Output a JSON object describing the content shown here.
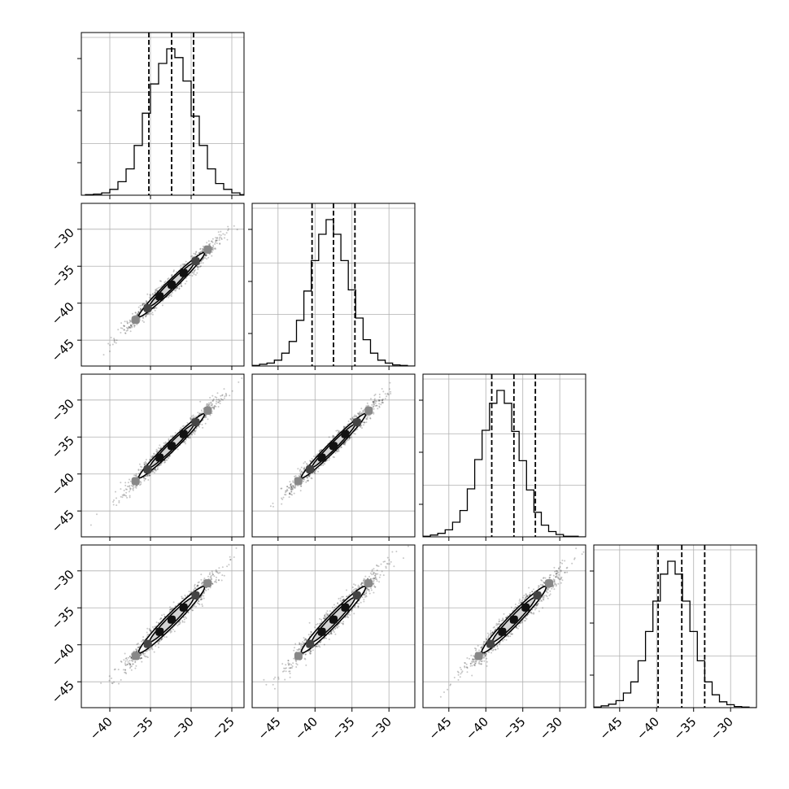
{
  "chart_data": {
    "type": "corner",
    "dimensions": 4,
    "ranges": [
      [
        -43.5,
        -23.5
      ],
      [
        -48.5,
        -26.5
      ],
      [
        -48.5,
        -26.5
      ],
      [
        -48.5,
        -26.5
      ]
    ],
    "tick_values": [
      [
        -40,
        -35,
        -30,
        -25
      ],
      [
        -45,
        -40,
        -35,
        -30
      ],
      [
        -45,
        -40,
        -35,
        -30
      ],
      [
        -45,
        -40,
        -35,
        -30
      ]
    ],
    "tick_labels": [
      [
        "−40",
        "−35",
        "−30",
        "−25"
      ],
      [
        "−45",
        "−40",
        "−35",
        "−30"
      ],
      [
        "−45",
        "−40",
        "−35",
        "−30"
      ],
      [
        "−45",
        "−40",
        "−35",
        "−30"
      ]
    ],
    "row_tick_values": [
      [
        -30,
        -35,
        -40,
        -45
      ],
      [
        -30,
        -35,
        -40,
        -45
      ],
      [
        -30,
        -35,
        -40,
        -45
      ]
    ],
    "row_tick_labels": [
      [
        "−30",
        "−35",
        "−40",
        "−45"
      ],
      [
        "−30",
        "−35",
        "−40",
        "−45"
      ],
      [
        "−30",
        "−35",
        "−40",
        "−45"
      ]
    ],
    "histograms": [
      {
        "bin_edges": [
          -43,
          -42,
          -41,
          -40,
          -39,
          -38,
          -37,
          -36,
          -35,
          -34,
          -33,
          -32,
          -31,
          -30,
          -29,
          -28,
          -27,
          -26,
          -25,
          -24,
          -23.5
        ],
        "counts": [
          1,
          2,
          4,
          10,
          23,
          45,
          85,
          140,
          190,
          225,
          250,
          235,
          195,
          135,
          85,
          45,
          20,
          10,
          4,
          1
        ],
        "quantiles": [
          -35.2,
          -32.4,
          -29.7
        ]
      },
      {
        "bin_edges": [
          -48.5,
          -47.5,
          -46.5,
          -45.5,
          -44.5,
          -43.5,
          -42.5,
          -41.5,
          -40.5,
          -39.5,
          -38.5,
          -37.5,
          -36.5,
          -35.5,
          -34.5,
          -33.5,
          -32.5,
          -31.5,
          -30.5,
          -29.5,
          -28.5,
          -27.5,
          -26.5
        ],
        "counts": [
          1,
          3,
          5,
          10,
          22,
          42,
          78,
          128,
          180,
          225,
          250,
          225,
          180,
          130,
          82,
          45,
          22,
          10,
          5,
          2,
          1,
          0
        ],
        "quantiles": [
          -40.4,
          -37.5,
          -34.6
        ]
      },
      {
        "bin_edges": [
          -48.5,
          -47.5,
          -46.5,
          -45.5,
          -44.5,
          -43.5,
          -42.5,
          -41.5,
          -40.5,
          -39.5,
          -38.5,
          -37.5,
          -36.5,
          -35.5,
          -34.5,
          -33.5,
          -32.5,
          -31.5,
          -30.5,
          -29.5,
          -28.5,
          -27.5,
          -26.5
        ],
        "counts": [
          1,
          3,
          6,
          12,
          25,
          45,
          82,
          132,
          182,
          228,
          250,
          228,
          180,
          130,
          80,
          42,
          20,
          9,
          4,
          1,
          1,
          0
        ],
        "quantiles": [
          -39.2,
          -36.2,
          -33.3
        ]
      },
      {
        "bin_edges": [
          -48.5,
          -47.5,
          -46.5,
          -45.5,
          -44.5,
          -43.5,
          -42.5,
          -41.5,
          -40.5,
          -39.5,
          -38.5,
          -37.5,
          -36.5,
          -35.5,
          -34.5,
          -33.5,
          -32.5,
          -31.5,
          -30.5,
          -29.5,
          -28.5,
          -27.5,
          -26.5
        ],
        "counts": [
          1,
          3,
          6,
          12,
          25,
          44,
          80,
          130,
          182,
          228,
          250,
          228,
          182,
          130,
          80,
          44,
          22,
          10,
          5,
          2,
          1,
          0
        ],
        "quantiles": [
          -39.8,
          -36.6,
          -33.5
        ]
      }
    ],
    "joint": [
      {
        "x_dim": 0,
        "y_dim": 1,
        "mean_x": -32.4,
        "mean_y": -37.5,
        "sd_x": 2.7,
        "sd_y": 2.9,
        "correlation": 0.98
      },
      {
        "x_dim": 0,
        "y_dim": 2,
        "mean_x": -32.4,
        "mean_y": -36.2,
        "sd_x": 2.7,
        "sd_y": 2.9,
        "correlation": 0.98
      },
      {
        "x_dim": 1,
        "y_dim": 2,
        "mean_x": -37.5,
        "mean_y": -36.2,
        "sd_x": 2.9,
        "sd_y": 2.9,
        "correlation": 0.98
      },
      {
        "x_dim": 0,
        "y_dim": 3,
        "mean_x": -32.4,
        "mean_y": -36.6,
        "sd_x": 2.7,
        "sd_y": 3.0,
        "correlation": 0.97
      },
      {
        "x_dim": 1,
        "y_dim": 3,
        "mean_x": -37.5,
        "mean_y": -36.6,
        "sd_x": 2.9,
        "sd_y": 3.0,
        "correlation": 0.97
      },
      {
        "x_dim": 2,
        "y_dim": 3,
        "mean_x": -36.2,
        "mean_y": -36.6,
        "sd_x": 2.9,
        "sd_y": 3.0,
        "correlation": 0.97
      }
    ],
    "contour_levels_sigma": [
      1.0,
      1.5
    ],
    "grid": true,
    "title": "",
    "xlabel": "",
    "ylabel": ""
  }
}
